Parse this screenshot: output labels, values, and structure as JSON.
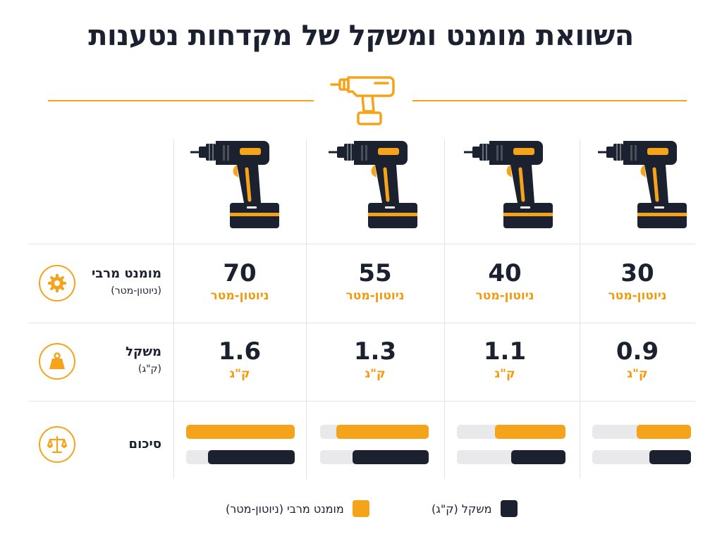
{
  "title": "השוואת מומנט ומשקל של מקדחות נטענות",
  "colors": {
    "accent": "#f5a31a",
    "dark": "#1c2130",
    "track": "#e9e9ec"
  },
  "rows": {
    "torque": {
      "label": "מומנט מרבי",
      "sublabel": "(ניוטון-מטר)",
      "icon": "gear-icon"
    },
    "weight": {
      "label": "משקל",
      "sublabel": "(ק\"ג)",
      "icon": "weight-icon"
    },
    "summary": {
      "label": "סיכום",
      "icon": "balance-scale-icon"
    }
  },
  "units": {
    "torque": "ניוטון-מטר",
    "weight": "ק\"ג"
  },
  "legend": [
    {
      "label": "מומנט מרבי (ניוטון-מטר)",
      "color": "#f5a31a"
    },
    {
      "label": "משקל (ק\"ג)",
      "color": "#1c2130"
    }
  ],
  "chart_data": {
    "type": "table",
    "title": "השוואת מומנט ומשקל של מקדחות נטענות",
    "columns": [
      "",
      "",
      "",
      ""
    ],
    "series": [
      {
        "name": "מומנט מרבי (ניוטון-מטר)",
        "values": [
          30,
          40,
          55,
          70
        ]
      },
      {
        "name": "משקל (ק\"ג)",
        "values": [
          0.9,
          1.1,
          1.3,
          1.6
        ]
      }
    ],
    "torque_display": [
      "30",
      "40",
      "55",
      "70"
    ],
    "weight_display": [
      "0.9",
      "1.1",
      "1.3",
      "1.6"
    ],
    "summary_bars": {
      "torque_fraction": [
        0.55,
        0.65,
        0.85,
        1.0
      ],
      "weight_fraction": [
        0.42,
        0.5,
        0.7,
        0.8
      ]
    },
    "column_order": "right-to-left"
  }
}
